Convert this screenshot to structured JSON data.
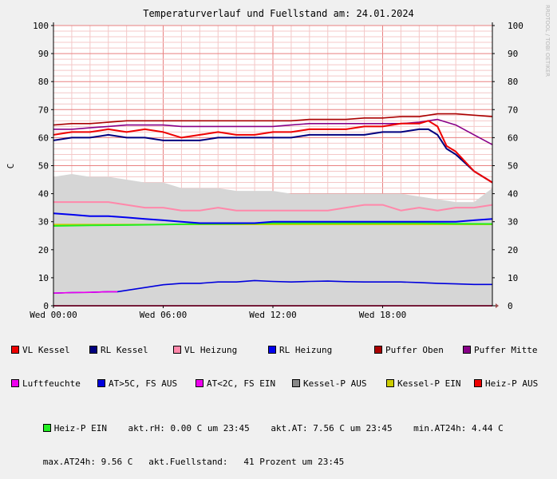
{
  "chart_data": {
    "type": "line",
    "title": "Temperaturverlauf und Fuellstand am: 24.01.2024",
    "ylabel": "C",
    "watermark": "RRDTOOL / TOBI OETIKER",
    "ylim": [
      0,
      100
    ],
    "yticks": [
      "0",
      "10",
      "20",
      "30",
      "40",
      "50",
      "60",
      "70",
      "80",
      "90",
      "100"
    ],
    "xlim": [
      0,
      24
    ],
    "xticks": [
      {
        "label": "Wed 00:00",
        "x": 0
      },
      {
        "label": "Wed 06:00",
        "x": 6
      },
      {
        "label": "Wed 12:00",
        "x": 12
      },
      {
        "label": "Wed 18:00",
        "x": 18
      }
    ],
    "grid": true,
    "legend_position": "bottom",
    "series": [
      {
        "name": "VL Kessel",
        "color": "#ee0000",
        "x": [
          0,
          1,
          2,
          3,
          4,
          5,
          6,
          7,
          8,
          9,
          10,
          11,
          12,
          13,
          14,
          15,
          16,
          17,
          18,
          19,
          20,
          20.5,
          21,
          21.5,
          22,
          23,
          24
        ],
        "y": [
          61,
          62,
          62,
          63,
          62,
          63,
          62,
          60,
          61,
          62,
          61,
          61,
          62,
          62,
          63,
          63,
          63,
          64,
          64,
          65,
          65,
          66,
          64,
          57,
          55,
          48,
          44
        ]
      },
      {
        "name": "RL Kessel",
        "color": "#00007f",
        "x": [
          0,
          1,
          2,
          3,
          4,
          5,
          6,
          7,
          8,
          9,
          10,
          11,
          12,
          13,
          14,
          15,
          16,
          17,
          18,
          19,
          20,
          20.5,
          21,
          21.5,
          22,
          23,
          24
        ],
        "y": [
          59,
          60,
          60,
          61,
          60,
          60,
          59,
          59,
          59,
          60,
          60,
          60,
          60,
          60,
          61,
          61,
          61,
          61,
          62,
          62,
          63,
          63,
          61,
          56,
          54,
          48,
          44
        ]
      },
      {
        "name": "VL Heizung",
        "color": "#ff88aa",
        "x": [
          0,
          1,
          2,
          3,
          4,
          5,
          6,
          7,
          8,
          9,
          10,
          11,
          12,
          13,
          14,
          15,
          16,
          17,
          18,
          19,
          20,
          21,
          22,
          23,
          24
        ],
        "y": [
          37,
          37,
          37,
          37,
          36,
          35,
          35,
          34,
          34,
          35,
          34,
          34,
          34,
          34,
          34,
          34,
          35,
          36,
          36,
          34,
          35,
          34,
          35,
          35,
          36
        ]
      },
      {
        "name": "RL Heizung",
        "color": "#0000ee",
        "x": [
          0,
          1,
          2,
          3,
          4,
          5,
          6,
          7,
          8,
          9,
          10,
          11,
          12,
          13,
          14,
          15,
          16,
          17,
          18,
          19,
          20,
          21,
          22,
          23,
          24
        ],
        "y": [
          33,
          32.5,
          32,
          32,
          31.5,
          31,
          30.5,
          30,
          29.5,
          29.5,
          29.5,
          29.5,
          30,
          30,
          30,
          30,
          30,
          30,
          30,
          30,
          30,
          30,
          30,
          30.5,
          31
        ]
      },
      {
        "name": "Puffer Oben",
        "color": "#aa0000",
        "x": [
          0,
          1,
          2,
          3,
          4,
          5,
          6,
          7,
          8,
          9,
          10,
          11,
          12,
          13,
          14,
          15,
          16,
          17,
          18,
          19,
          20,
          21,
          22,
          23,
          24
        ],
        "y": [
          64.5,
          65,
          65,
          65.5,
          66,
          66,
          66,
          66,
          66,
          66,
          66,
          66,
          66,
          66,
          66.5,
          66.5,
          66.5,
          67,
          67,
          67.5,
          67.5,
          68.5,
          68.5,
          68,
          67.5
        ]
      },
      {
        "name": "Puffer Mitte",
        "color": "#880088",
        "x": [
          0,
          1,
          2,
          3,
          4,
          5,
          6,
          7,
          8,
          9,
          10,
          11,
          12,
          13,
          14,
          15,
          16,
          17,
          18,
          19,
          20,
          21,
          22,
          23,
          24
        ],
        "y": [
          63,
          63,
          63.5,
          64,
          64.5,
          64.5,
          64.5,
          64,
          64,
          64,
          64,
          64,
          64,
          64.5,
          65,
          65,
          65,
          65,
          65,
          65,
          65.5,
          66.5,
          64.5,
          61,
          57.5
        ]
      },
      {
        "name": "Luftfeuchte",
        "color": "#ee00ee",
        "x": [
          0,
          24
        ],
        "y": [
          0,
          0
        ]
      },
      {
        "name": "AT>5C, FS AUS",
        "color": "#0000dd",
        "x": [
          0,
          1,
          2,
          3,
          3.5,
          4,
          5,
          6,
          7,
          8,
          9,
          10,
          11,
          12,
          13,
          14,
          15,
          16,
          17,
          18,
          19,
          20,
          21,
          22,
          23,
          24
        ],
        "y": [
          4.5,
          4.7,
          4.8,
          5,
          5,
          5.5,
          6.5,
          7.5,
          8,
          8,
          8.5,
          8.5,
          9,
          8.7,
          8.5,
          8.7,
          8.8,
          8.6,
          8.5,
          8.5,
          8.5,
          8.3,
          8,
          7.8,
          7.6,
          7.6
        ]
      },
      {
        "name": "AT<2C, FS EIN",
        "color": "#ee00ee",
        "x": [
          0,
          1,
          2,
          3,
          3.5
        ],
        "y": [
          4.5,
          4.7,
          4.8,
          5,
          5
        ]
      },
      {
        "name": "Kessel-P AUS",
        "color": "#888888",
        "x": [
          0,
          1,
          2,
          3,
          4,
          5,
          6,
          7,
          8,
          9,
          10,
          11,
          12,
          13,
          14,
          15,
          16,
          17,
          18,
          19,
          20,
          21,
          22,
          23,
          24
        ],
        "y": [
          46,
          47,
          46,
          46,
          45,
          44,
          44,
          42,
          42,
          42,
          41,
          41,
          41,
          40,
          40,
          40,
          40,
          40,
          40,
          40,
          39,
          38,
          37,
          37,
          42
        ]
      },
      {
        "name": "Kessel-P EIN",
        "color": "#cccc00",
        "x": [
          0,
          24
        ],
        "y": [
          29,
          29
        ]
      },
      {
        "name": "Heiz-P AUS",
        "color": "#ee0000",
        "x": [
          0,
          24
        ],
        "y": [
          0,
          0
        ]
      },
      {
        "name": "Heiz-P EIN",
        "color": "#22ee22",
        "x": [
          0,
          2,
          4,
          6,
          8,
          10,
          12,
          14,
          16,
          18,
          20,
          22,
          24
        ],
        "y": [
          28.5,
          28.7,
          28.8,
          29,
          29.2,
          29.3,
          29.5,
          29.5,
          29.5,
          29.5,
          29.5,
          29.3,
          29.2
        ]
      }
    ]
  },
  "stats": {
    "line1": "akt.rH: 0.00 C um 23:45",
    "line2": "akt.AT: 7.56 C um 23:45",
    "line3": "min.AT24h: 4.44 C",
    "line4": "max.AT24h: 9.56 C",
    "line5": "akt.Fuellstand:   41 Prozent um 23:45"
  }
}
